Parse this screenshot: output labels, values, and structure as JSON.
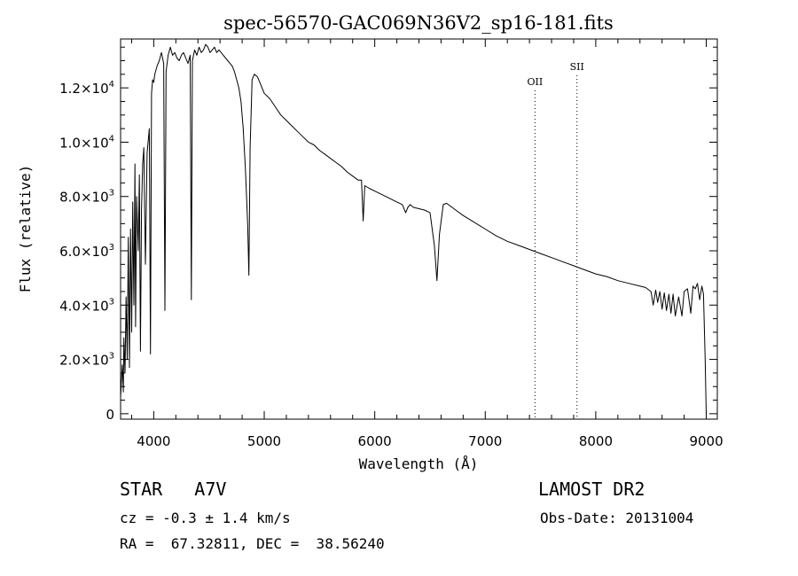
{
  "chart_data": {
    "type": "line",
    "title": "spec-56570-GAC069N36V2_sp16-181.fits",
    "xlabel": "Wavelength (Å)",
    "ylabel": "Flux (relative)",
    "xlim": [
      3700,
      9100
    ],
    "ylim": [
      -200,
      13800
    ],
    "x_ticks": [
      {
        "value": 4000,
        "label": "4000"
      },
      {
        "value": 5000,
        "label": "5000"
      },
      {
        "value": 6000,
        "label": "6000"
      },
      {
        "value": 7000,
        "label": "7000"
      },
      {
        "value": 8000,
        "label": "8000"
      },
      {
        "value": 9000,
        "label": "9000"
      }
    ],
    "y_ticks": [
      {
        "value": 0,
        "mant": "0",
        "exp": ""
      },
      {
        "value": 2000,
        "mant": "2.0×10",
        "exp": "3"
      },
      {
        "value": 4000,
        "mant": "4.0×10",
        "exp": "3"
      },
      {
        "value": 6000,
        "mant": "6.0×10",
        "exp": "3"
      },
      {
        "value": 8000,
        "mant": "8.0×10",
        "exp": "3"
      },
      {
        "value": 10000,
        "mant": "1.0×10",
        "exp": "4"
      },
      {
        "value": 12000,
        "mant": "1.2×10",
        "exp": "4"
      }
    ],
    "spectrum": {
      "x": [
        3700,
        3715,
        3725,
        3730,
        3740,
        3750,
        3760,
        3770,
        3780,
        3790,
        3800,
        3810,
        3820,
        3830,
        3836,
        3845,
        3860,
        3870,
        3880,
        3889,
        3900,
        3910,
        3925,
        3940,
        3960,
        3970,
        3980,
        3990,
        4000,
        4010,
        4030,
        4050,
        4070,
        4090,
        4101,
        4112,
        4130,
        4150,
        4170,
        4190,
        4210,
        4230,
        4250,
        4270,
        4290,
        4310,
        4330,
        4340,
        4350,
        4370,
        4390,
        4410,
        4430,
        4450,
        4470,
        4490,
        4510,
        4530,
        4550,
        4570,
        4590,
        4610,
        4630,
        4650,
        4670,
        4690,
        4710,
        4730,
        4750,
        4770,
        4790,
        4810,
        4830,
        4850,
        4861,
        4872,
        4890,
        4910,
        4940,
        4970,
        5000,
        5050,
        5100,
        5150,
        5200,
        5250,
        5300,
        5350,
        5400,
        5450,
        5500,
        5550,
        5600,
        5650,
        5700,
        5750,
        5800,
        5850,
        5880,
        5895,
        5910,
        5950,
        6000,
        6050,
        6100,
        6150,
        6200,
        6250,
        6280,
        6300,
        6320,
        6350,
        6400,
        6450,
        6500,
        6540,
        6563,
        6585,
        6620,
        6650,
        6700,
        6750,
        6800,
        6900,
        7000,
        7100,
        7200,
        7300,
        7400,
        7500,
        7600,
        7700,
        7800,
        7900,
        8000,
        8100,
        8200,
        8300,
        8400,
        8450,
        8500,
        8520,
        8542,
        8560,
        8580,
        8600,
        8620,
        8640,
        8662,
        8680,
        8700,
        8720,
        8750,
        8780,
        8800,
        8830,
        8860,
        8880,
        8900,
        8920,
        8940,
        8960,
        8975,
        8990,
        9000
      ],
      "y": [
        600,
        1800,
        800,
        2800,
        1500,
        4300,
        2000,
        6500,
        1700,
        6800,
        3000,
        7800,
        4000,
        9200,
        3200,
        8000,
        6000,
        8800,
        2300,
        7500,
        9200,
        9800,
        5500,
        9600,
        10500,
        2200,
        11800,
        12300,
        12200,
        12500,
        12800,
        13000,
        13300,
        12900,
        3800,
        12600,
        13200,
        13500,
        13200,
        13300,
        13100,
        13000,
        13200,
        13300,
        13100,
        12900,
        13200,
        4200,
        13000,
        13400,
        13200,
        13500,
        13300,
        13400,
        13600,
        13500,
        13300,
        13400,
        13500,
        13300,
        13400,
        13300,
        13200,
        13100,
        13000,
        12900,
        12800,
        12600,
        12300,
        12000,
        11500,
        10500,
        9000,
        7000,
        5100,
        9800,
        12300,
        12500,
        12400,
        12100,
        11800,
        11600,
        11300,
        11000,
        10800,
        10600,
        10400,
        10200,
        10000,
        9900,
        9700,
        9550,
        9400,
        9250,
        9100,
        8900,
        8750,
        8600,
        8600,
        7100,
        8400,
        8300,
        8200,
        8100,
        8000,
        7900,
        7800,
        7700,
        7400,
        7600,
        7700,
        7600,
        7550,
        7500,
        7400,
        6200,
        4900,
        6600,
        7700,
        7750,
        7600,
        7450,
        7300,
        7050,
        6800,
        6550,
        6350,
        6200,
        6050,
        5900,
        5750,
        5600,
        5450,
        5300,
        5150,
        5050,
        4900,
        4800,
        4700,
        4650,
        4500,
        4000,
        4550,
        4100,
        4500,
        3850,
        4450,
        3800,
        4400,
        3700,
        4400,
        3600,
        4300,
        3600,
        4500,
        4600,
        3700,
        4700,
        4600,
        4800,
        4200,
        4700,
        4400,
        2000,
        0
      ]
    },
    "annotations": [
      {
        "label": "OII",
        "x": 7450
      },
      {
        "label": "SII",
        "x": 7830
      }
    ],
    "grid": false,
    "legend": "none"
  },
  "info": {
    "object_type": "STAR   A7V",
    "survey": "LAMOST DR2",
    "cz": "cz = -0.3 ± 1.4 km/s",
    "obs_date": "Obs-Date: 20131004",
    "radec": "RA =  67.32811, DEC =  38.56240"
  }
}
